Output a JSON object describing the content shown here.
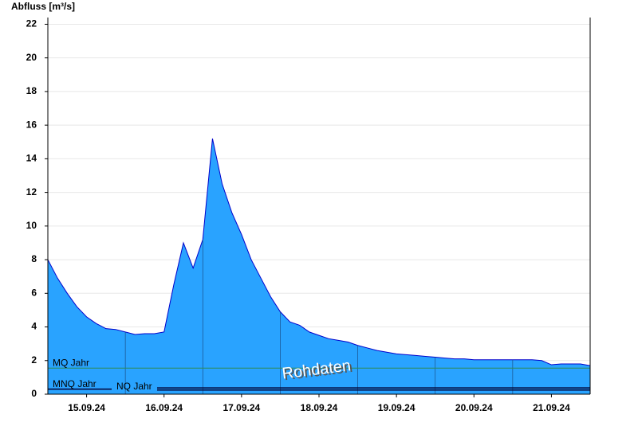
{
  "chart_data": {
    "type": "area",
    "y_label": "Abfluss [m³/s]",
    "annotation": "Rohdaten",
    "categories": [
      null,
      null,
      null,
      null,
      "15.09.24",
      null,
      null,
      null,
      null,
      null,
      null,
      null,
      "16.09.24",
      null,
      null,
      null,
      null,
      null,
      null,
      null,
      "17.09.24",
      null,
      null,
      null,
      null,
      null,
      null,
      null,
      "18.09.24",
      null,
      null,
      null,
      null,
      null,
      null,
      null,
      "19.09.24",
      null,
      null,
      null,
      null,
      null,
      null,
      null,
      "20.09.24",
      null,
      null,
      null,
      null,
      null,
      null,
      null,
      "21.09.24",
      null,
      null,
      null,
      null
    ],
    "series": [
      {
        "color": "#29a3ff",
        "line_color": "#0000cc",
        "values": [
          8.0,
          6.9,
          6.0,
          5.2,
          4.6,
          4.2,
          3.9,
          3.85,
          3.7,
          3.55,
          3.6,
          3.6,
          3.7,
          6.5,
          9.0,
          7.5,
          9.2,
          15.2,
          12.5,
          10.8,
          9.5,
          8.0,
          6.9,
          5.8,
          4.9,
          4.3,
          4.1,
          3.7,
          3.5,
          3.3,
          3.2,
          3.1,
          2.9,
          2.75,
          2.6,
          2.5,
          2.4,
          2.35,
          2.3,
          2.25,
          2.2,
          2.15,
          2.1,
          2.1,
          2.05,
          2.05,
          2.05,
          2.05,
          2.05,
          2.05,
          2.05,
          2.0,
          1.75,
          1.8,
          1.8,
          1.8,
          1.7
        ]
      }
    ],
    "reference_lines": [
      {
        "name": "MQ Jahr",
        "value": 1.55,
        "color": "#2e8b57"
      },
      {
        "name": "MNQ Jahr",
        "value": 0.3,
        "color": "#000033"
      },
      {
        "name": "NQ Jahr",
        "value": 0.25,
        "color": "#000033"
      }
    ],
    "ylim": [
      0,
      22.4
    ],
    "yticks": [
      0,
      2,
      4,
      6,
      8,
      10,
      12,
      14,
      16,
      18,
      20,
      22
    ],
    "grid": true
  }
}
